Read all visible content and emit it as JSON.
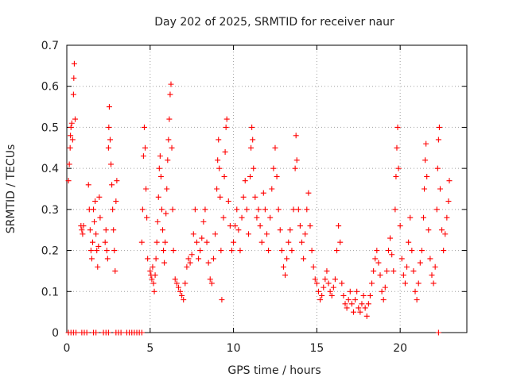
{
  "chart_data": {
    "type": "scatter",
    "title": "Day 202 of 2025, SRMTID for receiver naur",
    "xlabel": "GPS time / hours",
    "ylabel": "SRMTID / TECUs",
    "xlim": [
      0,
      24
    ],
    "ylim": [
      0,
      0.7
    ],
    "xticks": [
      0,
      5,
      10,
      15,
      20
    ],
    "yticks": [
      0,
      0.1,
      0.2,
      0.3,
      0.4,
      0.5,
      0.6,
      0.7
    ],
    "grid": true,
    "marker": "+",
    "color": "#ff0000",
    "series": [
      {
        "name": "SRMTID",
        "points": [
          [
            0.1,
            0.37
          ],
          [
            0.15,
            0.41
          ],
          [
            0.2,
            0.45
          ],
          [
            0.22,
            0.48
          ],
          [
            0.25,
            0.5
          ],
          [
            0.3,
            0.51
          ],
          [
            0.35,
            0.47
          ],
          [
            0.4,
            0.58
          ],
          [
            0.42,
            0.62
          ],
          [
            0.45,
            0.655
          ],
          [
            0.5,
            0.52
          ],
          [
            0.85,
            0.26
          ],
          [
            0.9,
            0.25
          ],
          [
            0.95,
            0.24
          ],
          [
            1.0,
            0.26
          ],
          [
            1.3,
            0.36
          ],
          [
            1.35,
            0.3
          ],
          [
            1.4,
            0.25
          ],
          [
            1.45,
            0.2
          ],
          [
            1.5,
            0.18
          ],
          [
            1.55,
            0.22
          ],
          [
            1.6,
            0.3
          ],
          [
            1.65,
            0.27
          ],
          [
            1.7,
            0.32
          ],
          [
            1.75,
            0.24
          ],
          [
            1.8,
            0.2
          ],
          [
            1.85,
            0.16
          ],
          [
            1.9,
            0.21
          ],
          [
            1.95,
            0.33
          ],
          [
            2.0,
            0.28
          ],
          [
            2.3,
            0.22
          ],
          [
            2.35,
            0.25
          ],
          [
            2.4,
            0.2
          ],
          [
            2.45,
            0.18
          ],
          [
            2.5,
            0.45
          ],
          [
            2.52,
            0.5
          ],
          [
            2.55,
            0.55
          ],
          [
            2.6,
            0.47
          ],
          [
            2.65,
            0.41
          ],
          [
            2.7,
            0.36
          ],
          [
            2.75,
            0.3
          ],
          [
            2.8,
            0.25
          ],
          [
            2.85,
            0.2
          ],
          [
            2.9,
            0.15
          ],
          [
            2.95,
            0.32
          ],
          [
            3.0,
            0.37
          ],
          [
            4.5,
            0.22
          ],
          [
            4.55,
            0.3
          ],
          [
            4.6,
            0.43
          ],
          [
            4.65,
            0.5
          ],
          [
            4.7,
            0.45
          ],
          [
            4.75,
            0.35
          ],
          [
            4.8,
            0.28
          ],
          [
            4.85,
            0.18
          ],
          [
            5.0,
            0.15
          ],
          [
            5.05,
            0.14
          ],
          [
            5.1,
            0.13
          ],
          [
            5.15,
            0.16
          ],
          [
            5.2,
            0.12
          ],
          [
            5.25,
            0.1
          ],
          [
            5.3,
            0.14
          ],
          [
            5.35,
            0.18
          ],
          [
            5.4,
            0.22
          ],
          [
            5.45,
            0.27
          ],
          [
            5.5,
            0.33
          ],
          [
            5.55,
            0.4
          ],
          [
            5.6,
            0.43
          ],
          [
            5.65,
            0.38
          ],
          [
            5.7,
            0.3
          ],
          [
            5.75,
            0.25
          ],
          [
            5.8,
            0.2
          ],
          [
            5.85,
            0.17
          ],
          [
            5.9,
            0.22
          ],
          [
            5.95,
            0.29
          ],
          [
            6.0,
            0.35
          ],
          [
            6.05,
            0.42
          ],
          [
            6.1,
            0.47
          ],
          [
            6.15,
            0.52
          ],
          [
            6.2,
            0.58
          ],
          [
            6.25,
            0.605
          ],
          [
            6.3,
            0.45
          ],
          [
            6.35,
            0.3
          ],
          [
            6.4,
            0.2
          ],
          [
            6.5,
            0.13
          ],
          [
            6.6,
            0.12
          ],
          [
            6.7,
            0.11
          ],
          [
            6.8,
            0.1
          ],
          [
            6.9,
            0.09
          ],
          [
            7.0,
            0.08
          ],
          [
            7.1,
            0.12
          ],
          [
            7.2,
            0.16
          ],
          [
            7.3,
            0.18
          ],
          [
            7.4,
            0.17
          ],
          [
            7.5,
            0.19
          ],
          [
            7.6,
            0.24
          ],
          [
            7.7,
            0.3
          ],
          [
            7.8,
            0.22
          ],
          [
            7.9,
            0.18
          ],
          [
            8.0,
            0.2
          ],
          [
            8.1,
            0.23
          ],
          [
            8.2,
            0.27
          ],
          [
            8.3,
            0.3
          ],
          [
            8.4,
            0.22
          ],
          [
            8.5,
            0.17
          ],
          [
            8.6,
            0.13
          ],
          [
            8.7,
            0.12
          ],
          [
            8.8,
            0.18
          ],
          [
            8.9,
            0.24
          ],
          [
            9.0,
            0.35
          ],
          [
            9.05,
            0.42
          ],
          [
            9.1,
            0.47
          ],
          [
            9.15,
            0.4
          ],
          [
            9.2,
            0.33
          ],
          [
            9.25,
            0.2
          ],
          [
            9.3,
            0.08
          ],
          [
            9.4,
            0.28
          ],
          [
            9.45,
            0.38
          ],
          [
            9.5,
            0.44
          ],
          [
            9.55,
            0.5
          ],
          [
            9.6,
            0.52
          ],
          [
            9.7,
            0.32
          ],
          [
            9.8,
            0.26
          ],
          [
            9.9,
            0.2
          ],
          [
            10.0,
            0.22
          ],
          [
            10.1,
            0.26
          ],
          [
            10.2,
            0.3
          ],
          [
            10.3,
            0.25
          ],
          [
            10.4,
            0.2
          ],
          [
            10.5,
            0.28
          ],
          [
            10.6,
            0.33
          ],
          [
            10.7,
            0.37
          ],
          [
            10.8,
            0.3
          ],
          [
            10.9,
            0.24
          ],
          [
            11.0,
            0.38
          ],
          [
            11.05,
            0.45
          ],
          [
            11.1,
            0.5
          ],
          [
            11.15,
            0.47
          ],
          [
            11.2,
            0.4
          ],
          [
            11.3,
            0.33
          ],
          [
            11.4,
            0.28
          ],
          [
            11.5,
            0.3
          ],
          [
            11.6,
            0.26
          ],
          [
            11.7,
            0.22
          ],
          [
            11.8,
            0.34
          ],
          [
            11.9,
            0.3
          ],
          [
            12.0,
            0.24
          ],
          [
            12.1,
            0.2
          ],
          [
            12.2,
            0.28
          ],
          [
            12.3,
            0.35
          ],
          [
            12.4,
            0.4
          ],
          [
            12.5,
            0.45
          ],
          [
            12.6,
            0.38
          ],
          [
            12.7,
            0.3
          ],
          [
            12.8,
            0.25
          ],
          [
            12.9,
            0.2
          ],
          [
            13.0,
            0.16
          ],
          [
            13.1,
            0.14
          ],
          [
            13.2,
            0.18
          ],
          [
            13.3,
            0.22
          ],
          [
            13.4,
            0.25
          ],
          [
            13.5,
            0.2
          ],
          [
            13.6,
            0.3
          ],
          [
            13.7,
            0.4
          ],
          [
            13.75,
            0.48
          ],
          [
            13.8,
            0.42
          ],
          [
            13.9,
            0.3
          ],
          [
            14.0,
            0.26
          ],
          [
            14.1,
            0.22
          ],
          [
            14.2,
            0.18
          ],
          [
            14.3,
            0.24
          ],
          [
            14.4,
            0.3
          ],
          [
            14.5,
            0.34
          ],
          [
            14.6,
            0.26
          ],
          [
            14.7,
            0.2
          ],
          [
            14.8,
            0.16
          ],
          [
            14.9,
            0.13
          ],
          [
            15.0,
            0.12
          ],
          [
            15.1,
            0.1
          ],
          [
            15.2,
            0.08
          ],
          [
            15.3,
            0.09
          ],
          [
            15.4,
            0.11
          ],
          [
            15.5,
            0.13
          ],
          [
            15.6,
            0.15
          ],
          [
            15.7,
            0.12
          ],
          [
            15.8,
            0.1
          ],
          [
            15.9,
            0.09
          ],
          [
            16.0,
            0.11
          ],
          [
            16.1,
            0.13
          ],
          [
            16.2,
            0.2
          ],
          [
            16.3,
            0.26
          ],
          [
            16.4,
            0.22
          ],
          [
            16.5,
            0.12
          ],
          [
            16.6,
            0.09
          ],
          [
            16.7,
            0.07
          ],
          [
            16.8,
            0.06
          ],
          [
            16.9,
            0.08
          ],
          [
            17.0,
            0.1
          ],
          [
            17.1,
            0.07
          ],
          [
            17.2,
            0.05
          ],
          [
            17.3,
            0.08
          ],
          [
            17.4,
            0.1
          ],
          [
            17.5,
            0.06
          ],
          [
            17.6,
            0.05
          ],
          [
            17.7,
            0.07
          ],
          [
            17.8,
            0.09
          ],
          [
            17.9,
            0.06
          ],
          [
            18.0,
            0.04
          ],
          [
            18.1,
            0.07
          ],
          [
            18.2,
            0.09
          ],
          [
            18.3,
            0.12
          ],
          [
            18.4,
            0.15
          ],
          [
            18.5,
            0.18
          ],
          [
            18.6,
            0.2
          ],
          [
            18.7,
            0.17
          ],
          [
            18.8,
            0.14
          ],
          [
            18.9,
            0.1
          ],
          [
            19.0,
            0.08
          ],
          [
            19.1,
            0.11
          ],
          [
            19.2,
            0.15
          ],
          [
            19.3,
            0.2
          ],
          [
            19.4,
            0.23
          ],
          [
            19.5,
            0.19
          ],
          [
            19.6,
            0.15
          ],
          [
            19.7,
            0.3
          ],
          [
            19.75,
            0.38
          ],
          [
            19.8,
            0.45
          ],
          [
            19.85,
            0.5
          ],
          [
            19.9,
            0.4
          ],
          [
            20.0,
            0.26
          ],
          [
            20.1,
            0.18
          ],
          [
            20.2,
            0.14
          ],
          [
            20.3,
            0.12
          ],
          [
            20.4,
            0.16
          ],
          [
            20.5,
            0.22
          ],
          [
            20.6,
            0.28
          ],
          [
            20.7,
            0.2
          ],
          [
            20.8,
            0.15
          ],
          [
            20.9,
            0.1
          ],
          [
            21.0,
            0.08
          ],
          [
            21.1,
            0.12
          ],
          [
            21.2,
            0.17
          ],
          [
            21.3,
            0.2
          ],
          [
            21.4,
            0.28
          ],
          [
            21.45,
            0.35
          ],
          [
            21.5,
            0.42
          ],
          [
            21.55,
            0.46
          ],
          [
            21.6,
            0.38
          ],
          [
            21.7,
            0.25
          ],
          [
            21.8,
            0.18
          ],
          [
            21.9,
            0.14
          ],
          [
            22.0,
            0.12
          ],
          [
            22.1,
            0.16
          ],
          [
            22.2,
            0.3
          ],
          [
            22.25,
            0.4
          ],
          [
            22.3,
            0.47
          ],
          [
            22.35,
            0.5
          ],
          [
            22.4,
            0.35
          ],
          [
            22.5,
            0.25
          ],
          [
            22.6,
            0.2
          ],
          [
            22.7,
            0.24
          ],
          [
            22.8,
            0.28
          ],
          [
            22.9,
            0.32
          ],
          [
            22.95,
            0.37
          ],
          [
            0.1,
            0.0
          ],
          [
            0.25,
            0.0
          ],
          [
            0.4,
            0.0
          ],
          [
            0.55,
            0.0
          ],
          [
            0.9,
            0.0
          ],
          [
            1.05,
            0.0
          ],
          [
            1.2,
            0.0
          ],
          [
            1.6,
            0.0
          ],
          [
            1.75,
            0.0
          ],
          [
            2.2,
            0.0
          ],
          [
            2.35,
            0.0
          ],
          [
            2.5,
            0.0
          ],
          [
            2.95,
            0.0
          ],
          [
            3.1,
            0.0
          ],
          [
            3.25,
            0.0
          ],
          [
            3.6,
            0.0
          ],
          [
            3.75,
            0.0
          ],
          [
            3.9,
            0.0
          ],
          [
            4.05,
            0.0
          ],
          [
            4.2,
            0.0
          ],
          [
            4.35,
            0.0
          ],
          [
            4.5,
            0.0
          ],
          [
            22.3,
            0.0
          ]
        ]
      }
    ]
  }
}
